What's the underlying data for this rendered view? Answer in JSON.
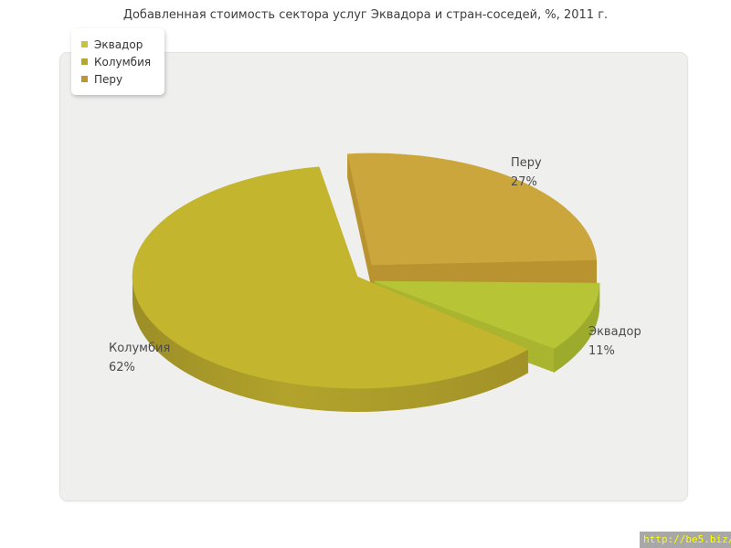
{
  "title": "Добавленная стоимость сектора услуг Эквадора и стран-соседей, %, 2011 г.",
  "legend": {
    "items": [
      {
        "label": "Эквадор",
        "color": "#c3c636"
      },
      {
        "label": "Колумбия",
        "color": "#b5a92c"
      },
      {
        "label": "Перу",
        "color": "#bd9630"
      }
    ]
  },
  "chart_data": {
    "type": "pie",
    "style": "3d-exploded-pie",
    "title": "Добавленная стоимость сектора услуг Эквадора и стран-соседей, %, 2011 г.",
    "labels": [
      "Эквадор",
      "Колумбия",
      "Перу"
    ],
    "values": [
      11,
      62,
      27
    ],
    "unit": "%",
    "colors": [
      "#b7c436",
      "#c4b52f",
      "#cba63d"
    ],
    "side_colors": [
      "#9dab2c",
      "#aa9a29",
      "#ad8c2c"
    ],
    "edge_colors": [
      "#a9b52f",
      "#b3a32c",
      "#b8932f"
    ],
    "legend_position": "top-left",
    "callouts": [
      {
        "label": "Эквадор",
        "value_text": "11%"
      },
      {
        "label": "Колумбия",
        "value_text": "62%"
      },
      {
        "label": "Перу",
        "value_text": "27%"
      }
    ]
  },
  "watermark": {
    "text": "http://be5.biz/"
  }
}
